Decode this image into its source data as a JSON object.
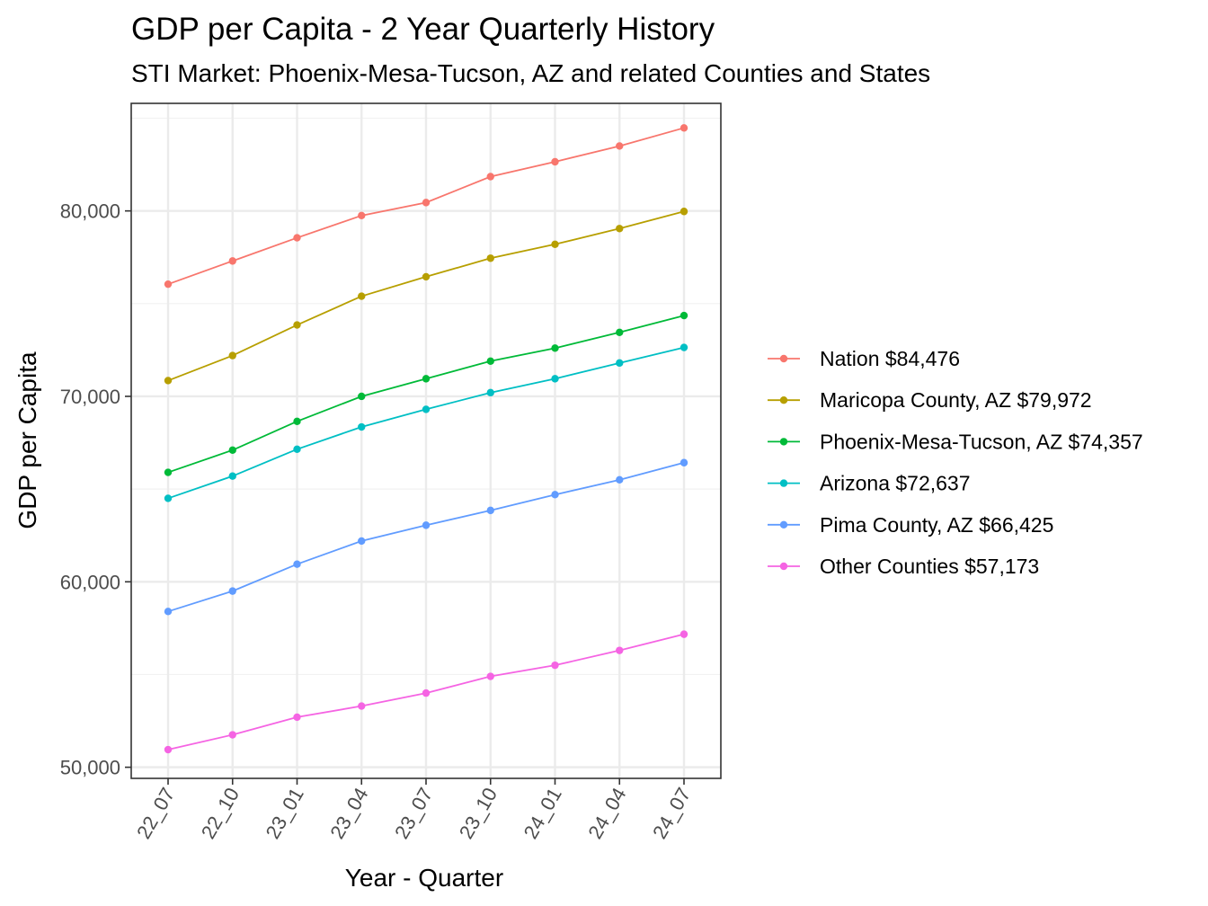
{
  "chart_data": {
    "type": "line",
    "title": "GDP per Capita - 2 Year Quarterly History",
    "subtitle": "STI Market: Phoenix-Mesa-Tucson, AZ and related Counties and States",
    "xlabel": "Year - Quarter",
    "ylabel": "GDP per Capita",
    "categories": [
      "22_07",
      "22_10",
      "23_01",
      "23_04",
      "23_07",
      "23_10",
      "24_01",
      "24_04",
      "24_07"
    ],
    "ylim": [
      49400,
      85800
    ],
    "yticks": [
      50000,
      60000,
      70000,
      80000
    ],
    "ytick_labels": [
      "50,000",
      "60,000",
      "70,000",
      "80,000"
    ],
    "grid": true,
    "legend_position": "right",
    "series": [
      {
        "name": "Nation $84,476",
        "color": "#F8766D",
        "values": [
          76050,
          77300,
          78550,
          79750,
          80450,
          81850,
          82650,
          83500,
          84476
        ]
      },
      {
        "name": "Maricopa County, AZ $79,972",
        "color": "#B79F00",
        "values": [
          70850,
          72200,
          73850,
          75400,
          76450,
          77450,
          78200,
          79050,
          79972
        ]
      },
      {
        "name": "Phoenix-Mesa-Tucson, AZ $74,357",
        "color": "#00BA38",
        "values": [
          65900,
          67100,
          68650,
          70000,
          70950,
          71900,
          72600,
          73450,
          74357
        ]
      },
      {
        "name": "Arizona $72,637",
        "color": "#00BFC4",
        "values": [
          64500,
          65700,
          67150,
          68350,
          69300,
          70200,
          70950,
          71800,
          72637
        ]
      },
      {
        "name": "Pima County, AZ $66,425",
        "color": "#619CFF",
        "values": [
          58400,
          59500,
          60950,
          62200,
          63050,
          63850,
          64700,
          65500,
          66425
        ]
      },
      {
        "name": "Other Counties $57,173",
        "color": "#F564E3",
        "values": [
          50950,
          51750,
          52700,
          53300,
          54000,
          54900,
          55500,
          56300,
          57173
        ]
      }
    ]
  }
}
